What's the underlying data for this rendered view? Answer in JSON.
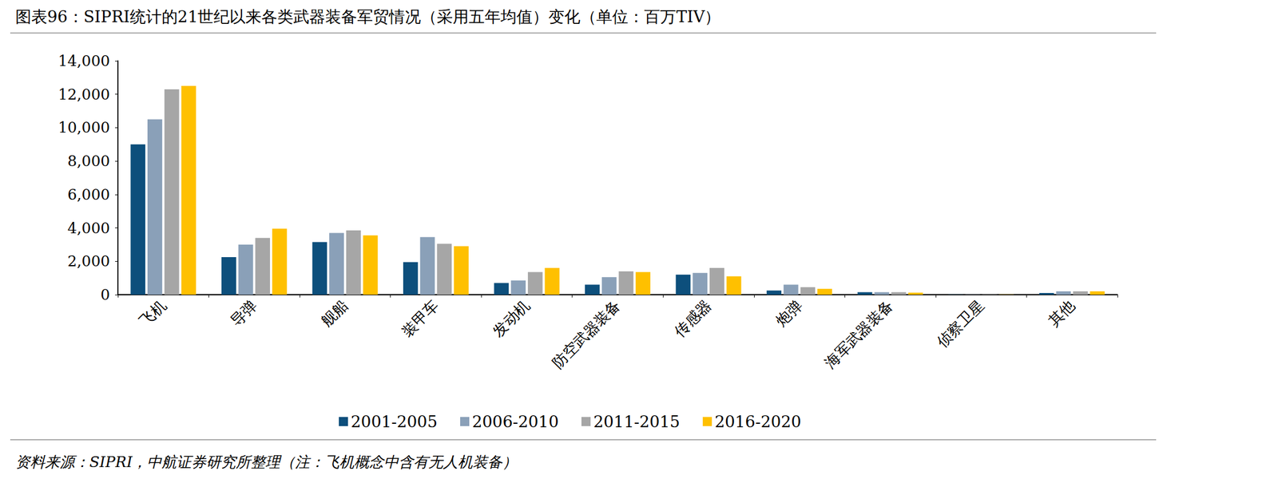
{
  "chart_data": {
    "type": "bar",
    "title": "图表96：SIPRI统计的21世纪以来各类武器装备军贸情况（采用五年均值）变化（单位：百万TIV）",
    "source": "资料来源：SIPRI，中航证券研究所整理（注：飞机概念中含有无人机装备）",
    "categories": [
      "飞机",
      "导弹",
      "舰船",
      "装甲车",
      "发动机",
      "防空武器装备",
      "传感器",
      "炮弹",
      "海军武器装备",
      "侦察卫星",
      "其他"
    ],
    "series": [
      {
        "name": "2001-2005",
        "color": "#0d4f7c",
        "values": [
          9000,
          2250,
          3150,
          1950,
          700,
          600,
          1200,
          250,
          150,
          10,
          100
        ]
      },
      {
        "name": "2006-2010",
        "color": "#8aa0b8",
        "values": [
          10500,
          3000,
          3700,
          3450,
          850,
          1050,
          1300,
          600,
          150,
          10,
          200
        ]
      },
      {
        "name": "2011-2015",
        "color": "#a6a6a6",
        "values": [
          12300,
          3400,
          3850,
          3050,
          1350,
          1400,
          1600,
          450,
          150,
          10,
          200
        ]
      },
      {
        "name": "2016-2020",
        "color": "#ffc000",
        "values": [
          12500,
          3950,
          3550,
          2900,
          1600,
          1350,
          1100,
          350,
          120,
          10,
          200
        ]
      }
    ],
    "ylim": [
      0,
      14000
    ],
    "yticks": [
      0,
      2000,
      4000,
      6000,
      8000,
      10000,
      12000,
      14000
    ],
    "grid": false,
    "legend": "bottom"
  }
}
